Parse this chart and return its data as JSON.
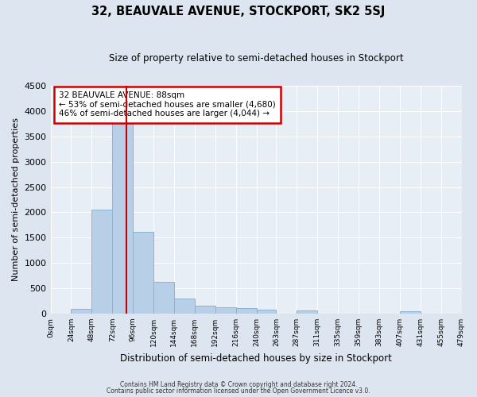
{
  "title": "32, BEAUVALE AVENUE, STOCKPORT, SK2 5SJ",
  "subtitle": "Size of property relative to semi-detached houses in Stockport",
  "xlabel": "Distribution of semi-detached houses by size in Stockport",
  "ylabel": "Number of semi-detached properties",
  "bin_labels": [
    "0sqm",
    "24sqm",
    "48sqm",
    "72sqm",
    "96sqm",
    "120sqm",
    "144sqm",
    "168sqm",
    "192sqm",
    "216sqm",
    "240sqm",
    "263sqm",
    "287sqm",
    "311sqm",
    "335sqm",
    "359sqm",
    "383sqm",
    "407sqm",
    "431sqm",
    "455sqm",
    "479sqm"
  ],
  "bin_edges": [
    0,
    24,
    48,
    72,
    96,
    120,
    144,
    168,
    192,
    216,
    240,
    263,
    287,
    311,
    335,
    359,
    383,
    407,
    431,
    455,
    479
  ],
  "bar_heights": [
    0,
    100,
    2060,
    3760,
    1620,
    630,
    300,
    160,
    120,
    110,
    80,
    0,
    60,
    0,
    0,
    0,
    0,
    40,
    0,
    0,
    0
  ],
  "bar_color": "#b8cfe8",
  "bar_edge_color": "#8ab4d4",
  "property_size": 88,
  "property_line_color": "#cc0000",
  "ylim": [
    0,
    4500
  ],
  "yticks": [
    0,
    500,
    1000,
    1500,
    2000,
    2500,
    3000,
    3500,
    4000,
    4500
  ],
  "annotation_title": "32 BEAUVALE AVENUE: 88sqm",
  "annotation_line1": "← 53% of semi-detached houses are smaller (4,680)",
  "annotation_line2": "46% of semi-detached houses are larger (4,044) →",
  "annotation_box_color": "#ffffff",
  "annotation_box_edge": "#cc0000",
  "footer_line1": "Contains HM Land Registry data © Crown copyright and database right 2024.",
  "footer_line2": "Contains public sector information licensed under the Open Government Licence v3.0.",
  "bg_color": "#dde6f0",
  "plot_bg_color": "#e8eef5",
  "grid_color": "#ffffff"
}
